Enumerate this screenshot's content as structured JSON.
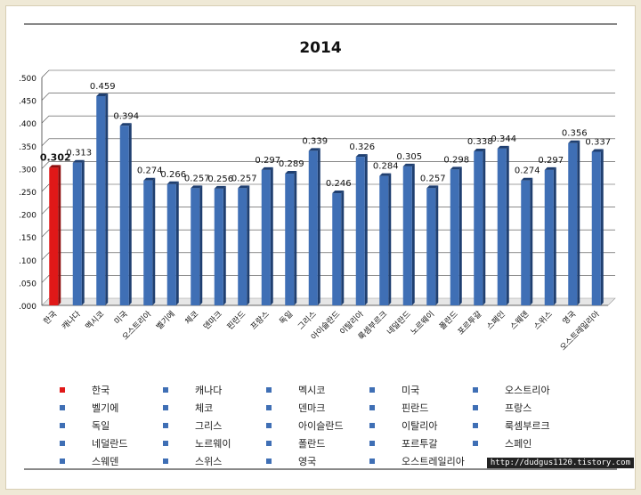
{
  "chart_data": {
    "type": "bar",
    "title": "2014",
    "categories": [
      "한국",
      "캐나다",
      "멕시코",
      "미국",
      "오스트리아",
      "벨기에",
      "체코",
      "덴마크",
      "핀란드",
      "프랑스",
      "독일",
      "그리스",
      "아이슬란드",
      "이탈리아",
      "룩셈부르크",
      "네덜란드",
      "노르웨이",
      "폴란드",
      "포르투갈",
      "스페인",
      "스웨덴",
      "스위스",
      "영국",
      "오스트레일리아"
    ],
    "values": [
      0.302,
      0.313,
      0.459,
      0.394,
      0.274,
      0.266,
      0.257,
      0.256,
      0.257,
      0.297,
      0.289,
      0.339,
      0.246,
      0.326,
      0.284,
      0.305,
      0.257,
      0.298,
      0.338,
      0.344,
      0.274,
      0.297,
      0.356,
      0.337
    ],
    "value_labels": [
      "0.302",
      "0.313",
      "0.459",
      "0.394",
      "0.274",
      "0.266",
      "0.257",
      "0.256",
      "0.257",
      "0.297",
      "0.289",
      "0.339",
      "0.246",
      "0.326",
      "0.284",
      "0.305",
      "0.257",
      "0.298",
      "0.338",
      "0.344",
      "0.274",
      "0.297",
      "0.356",
      "0.337"
    ],
    "ylim": [
      0.0,
      0.5
    ],
    "yticks": [
      ".000",
      ".050",
      ".100",
      ".150",
      ".200",
      ".250",
      ".300",
      ".350",
      ".400",
      ".450",
      ".500"
    ],
    "ytick_values": [
      0.0,
      0.05,
      0.1,
      0.15,
      0.2,
      0.25,
      0.3,
      0.35,
      0.4,
      0.45,
      0.5
    ],
    "grid": true,
    "legend_position": "bottom",
    "colors": {
      "highlight": "#e01818",
      "default": "#3f6fb5",
      "highlight_dark": "#8e0c0c",
      "default_dark": "#1f3f70"
    },
    "highlight_index": 0
  },
  "watermark": "http://dudgus1120.tistory.com"
}
